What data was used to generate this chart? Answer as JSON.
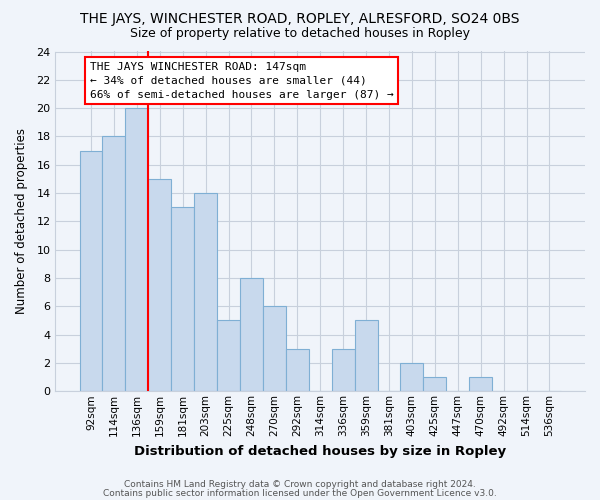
{
  "title": "THE JAYS, WINCHESTER ROAD, ROPLEY, ALRESFORD, SO24 0BS",
  "subtitle": "Size of property relative to detached houses in Ropley",
  "xlabel": "Distribution of detached houses by size in Ropley",
  "ylabel": "Number of detached properties",
  "bin_labels": [
    "92sqm",
    "114sqm",
    "136sqm",
    "159sqm",
    "181sqm",
    "203sqm",
    "225sqm",
    "248sqm",
    "270sqm",
    "292sqm",
    "314sqm",
    "336sqm",
    "359sqm",
    "381sqm",
    "403sqm",
    "425sqm",
    "447sqm",
    "470sqm",
    "492sqm",
    "514sqm",
    "536sqm"
  ],
  "bar_values": [
    17,
    18,
    20,
    15,
    13,
    14,
    5,
    8,
    6,
    3,
    0,
    3,
    5,
    0,
    2,
    1,
    0,
    1,
    0,
    0,
    0
  ],
  "bar_color": "#c8d9ed",
  "bar_edge_color": "#7fafd4",
  "red_line_x": 2.5,
  "ylim": [
    0,
    24
  ],
  "yticks": [
    0,
    2,
    4,
    6,
    8,
    10,
    12,
    14,
    16,
    18,
    20,
    22,
    24
  ],
  "annotation_title": "THE JAYS WINCHESTER ROAD: 147sqm",
  "annotation_line1": "← 34% of detached houses are smaller (44)",
  "annotation_line2": "66% of semi-detached houses are larger (87) →",
  "footnote1": "Contains HM Land Registry data © Crown copyright and database right 2024.",
  "footnote2": "Contains public sector information licensed under the Open Government Licence v3.0.",
  "background_color": "#f0f4fa",
  "plot_bg_color": "#f0f4fa",
  "grid_color": "#c8d0dc",
  "title_fontsize": 10,
  "subtitle_fontsize": 9,
  "xlabel_fontsize": 9.5,
  "ylabel_fontsize": 8.5,
  "tick_fontsize": 8,
  "xtick_fontsize": 7.5,
  "annot_fontsize": 8.0,
  "footnote_fontsize": 6.5
}
